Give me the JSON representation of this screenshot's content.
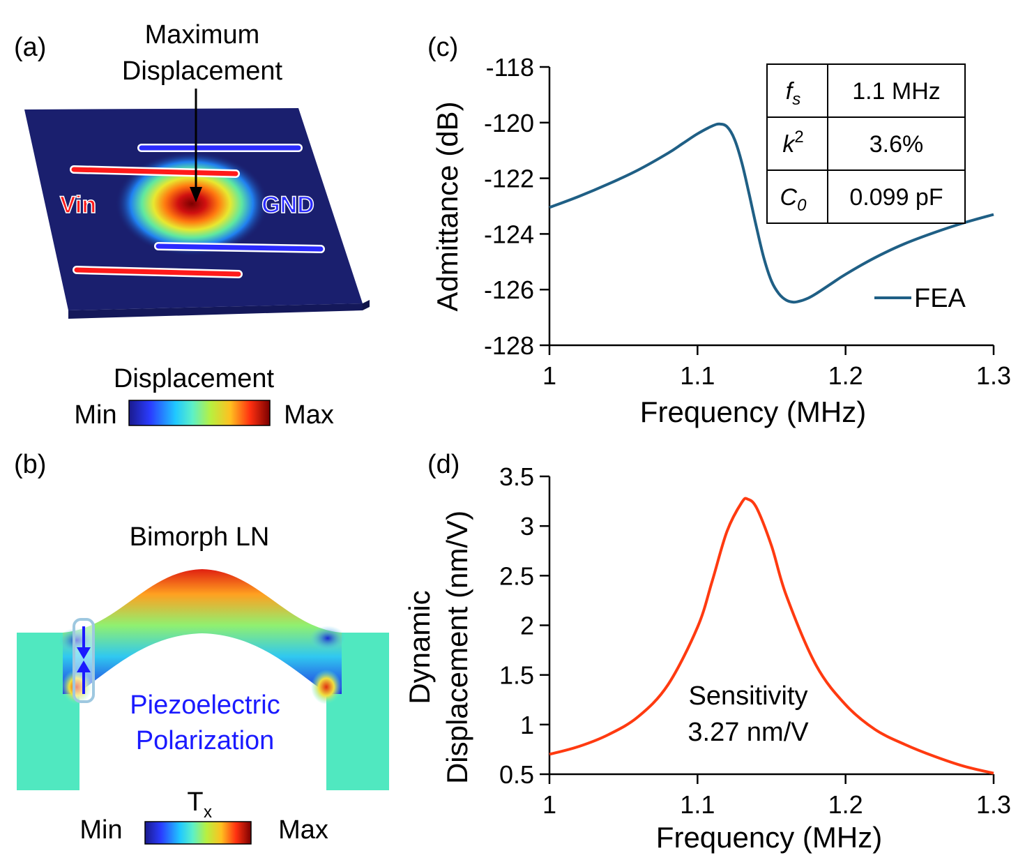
{
  "panel_a": {
    "label": "(a)",
    "annotation_line1": "Maximum",
    "annotation_line2": "Displacement",
    "vin": "Vin",
    "gnd": "GND",
    "colorbar_title": "Displacement",
    "colorbar_min": "Min",
    "colorbar_max": "Max"
  },
  "panel_b": {
    "label": "(b)",
    "title": "Bimorph LN",
    "pol_line1": "Piezoelectric",
    "pol_line2": "Polarization",
    "colorbar_title": "T",
    "colorbar_sub": "x",
    "colorbar_min": "Min",
    "colorbar_max": "Max"
  },
  "colors": {
    "substrate": "#1a1f6e",
    "vin_electrode": "#ff1a1a",
    "gnd_electrode": "#2a2aff",
    "fea_line": "#1f5f85",
    "sens_line": "#ff3a10",
    "pol_text": "#1a1aff"
  },
  "chart_data": [
    {
      "panel": "(c)",
      "type": "line",
      "xlabel": "Frequency (MHz)",
      "ylabel": "Admittance (dB)",
      "xlim": [
        1,
        1.3
      ],
      "ylim": [
        -128,
        -118
      ],
      "xticks": [
        "1",
        "1.1",
        "1.2",
        "1.3"
      ],
      "yticks": [
        "-118",
        "-120",
        "-122",
        "-124",
        "-126",
        "-128"
      ],
      "legend": "FEA",
      "series": [
        {
          "name": "FEA",
          "x": [
            1.0,
            1.02,
            1.04,
            1.06,
            1.08,
            1.09,
            1.1,
            1.11,
            1.115,
            1.12,
            1.125,
            1.13,
            1.135,
            1.14,
            1.145,
            1.15,
            1.155,
            1.16,
            1.165,
            1.17,
            1.175,
            1.18,
            1.19,
            1.2,
            1.22,
            1.24,
            1.26,
            1.28,
            1.3
          ],
          "y": [
            -123.05,
            -122.65,
            -122.2,
            -121.7,
            -121.1,
            -120.75,
            -120.4,
            -120.12,
            -120.05,
            -120.15,
            -120.6,
            -121.45,
            -122.6,
            -123.8,
            -124.9,
            -125.7,
            -126.15,
            -126.38,
            -126.45,
            -126.4,
            -126.3,
            -126.15,
            -125.8,
            -125.45,
            -124.85,
            -124.35,
            -123.95,
            -123.6,
            -123.3
          ]
        }
      ],
      "table": [
        {
          "param": "f",
          "sub": "s",
          "sup": "",
          "value": "1.1 MHz"
        },
        {
          "param": "k",
          "sub": "",
          "sup": "2",
          "value": "3.6%"
        },
        {
          "param": "C",
          "sub": "0",
          "sup": "",
          "value": "0.099 pF"
        }
      ]
    },
    {
      "panel": "(d)",
      "type": "line",
      "xlabel": "Frequency (MHz)",
      "ylabel_line1": "Dynamic",
      "ylabel_line2": "Displacement (nm/V)",
      "xlim": [
        1,
        1.3
      ],
      "ylim": [
        0.5,
        3.5
      ],
      "xticks": [
        "1",
        "1.1",
        "1.2",
        "1.3"
      ],
      "yticks": [
        "3.5",
        "3",
        "2.5",
        "2",
        "1.5",
        "1",
        "0.5"
      ],
      "annotation_line1": "Sensitivity",
      "annotation_line2": "3.27 nm/V",
      "series": [
        {
          "name": "Sensitivity",
          "peak_x": 1.134,
          "peak_y": 3.27,
          "x": [
            1.0,
            1.02,
            1.04,
            1.06,
            1.08,
            1.1,
            1.11,
            1.12,
            1.13,
            1.134,
            1.14,
            1.15,
            1.16,
            1.18,
            1.2,
            1.22,
            1.24,
            1.26,
            1.28,
            1.3
          ],
          "y": [
            0.7,
            0.78,
            0.9,
            1.08,
            1.4,
            1.98,
            2.45,
            2.95,
            3.24,
            3.27,
            3.18,
            2.8,
            2.3,
            1.6,
            1.2,
            0.95,
            0.8,
            0.68,
            0.58,
            0.51
          ]
        }
      ]
    }
  ]
}
